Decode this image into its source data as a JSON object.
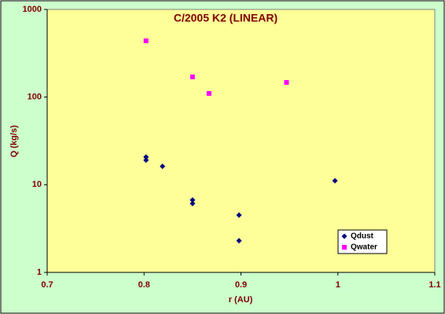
{
  "chart_data": {
    "type": "scatter",
    "title": "C/2005 K2 (LINEAR)",
    "xlabel": "r (AU)",
    "ylabel": "Q (kg/s)",
    "xlim": [
      0.7,
      1.1
    ],
    "xticks": [
      0.7,
      0.8,
      0.9,
      1,
      1.1
    ],
    "ylim": [
      1,
      1000
    ],
    "yticks": [
      1,
      10,
      100,
      1000
    ],
    "yscale": "log",
    "legend": "lower right",
    "grid": false,
    "series": [
      {
        "name": "Qdust",
        "color": "#000080",
        "marker": "diamond",
        "x": [
          0.802,
          0.802,
          0.819,
          0.85,
          0.85,
          0.898,
          0.898,
          0.997
        ],
        "values": [
          20.7,
          19.1,
          16.2,
          6.7,
          6.1,
          4.5,
          2.3,
          11.1
        ]
      },
      {
        "name": "Qwater",
        "color": "#ff00ff",
        "marker": "square",
        "x": [
          0.802,
          0.85,
          0.867,
          0.947
        ],
        "values": [
          438,
          170,
          110,
          147
        ]
      }
    ]
  }
}
